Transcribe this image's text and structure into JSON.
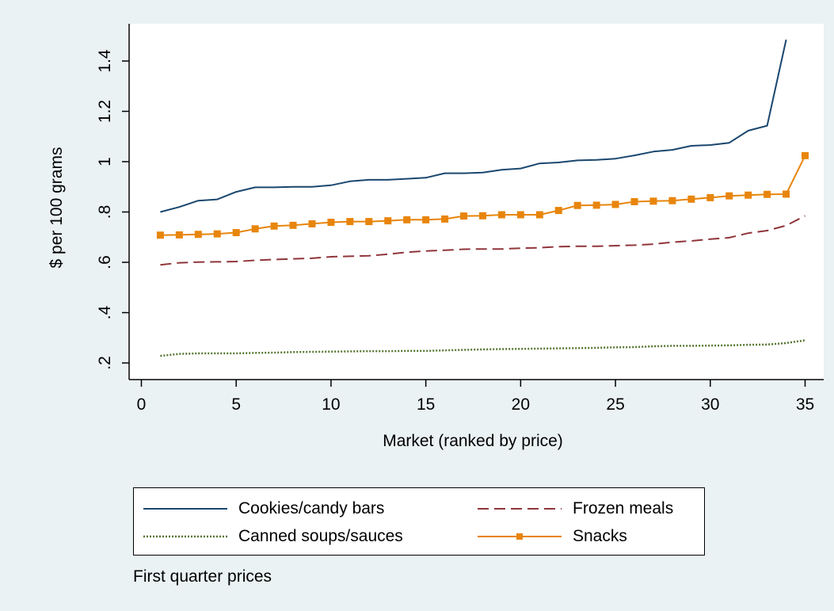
{
  "chart_data": {
    "type": "line",
    "xlabel": "Market (ranked by price)",
    "ylabel": "$ per 100 grams",
    "xlim": [
      0,
      35
    ],
    "ylim": [
      0.2,
      1.5
    ],
    "x_ticks": [
      0,
      5,
      10,
      15,
      20,
      25,
      30,
      35
    ],
    "y_ticks": [
      0.2,
      0.4,
      0.6,
      0.8,
      1.0,
      1.2,
      1.4
    ],
    "y_tick_labels": [
      ".2",
      ".4",
      ".6",
      ".8",
      "1",
      "1.2",
      "1.4"
    ],
    "grid": false,
    "legend_position": "bottom",
    "note": "First quarter prices",
    "series": [
      {
        "name": "Cookies/candy bars",
        "color": "#1a476f",
        "style": "solid",
        "x": [
          1,
          2,
          3,
          4,
          5,
          6,
          7,
          8,
          9,
          10,
          11,
          12,
          13,
          14,
          15,
          16,
          17,
          18,
          19,
          20,
          21,
          22,
          23,
          24,
          25,
          26,
          27,
          28,
          29,
          30,
          31,
          32,
          33,
          34
        ],
        "values": [
          0.8,
          0.82,
          0.845,
          0.85,
          0.88,
          0.898,
          0.898,
          0.9,
          0.9,
          0.906,
          0.922,
          0.928,
          0.928,
          0.932,
          0.936,
          0.954,
          0.954,
          0.957,
          0.968,
          0.973,
          0.993,
          0.997,
          1.005,
          1.007,
          1.012,
          1.025,
          1.04,
          1.047,
          1.063,
          1.066,
          1.075,
          1.123,
          1.143,
          1.485
        ]
      },
      {
        "name": "Frozen meals",
        "color": "#90353b",
        "style": "dashed",
        "x": [
          1,
          2,
          3,
          4,
          5,
          6,
          7,
          8,
          9,
          10,
          11,
          12,
          13,
          14,
          15,
          16,
          17,
          18,
          19,
          20,
          21,
          22,
          23,
          24,
          25,
          26,
          27,
          28,
          29,
          30,
          31,
          32,
          33,
          34,
          35
        ],
        "values": [
          0.59,
          0.598,
          0.601,
          0.602,
          0.603,
          0.608,
          0.611,
          0.614,
          0.616,
          0.622,
          0.624,
          0.626,
          0.632,
          0.64,
          0.645,
          0.648,
          0.652,
          0.653,
          0.653,
          0.656,
          0.658,
          0.662,
          0.664,
          0.664,
          0.666,
          0.668,
          0.672,
          0.68,
          0.685,
          0.692,
          0.698,
          0.716,
          0.726,
          0.746,
          0.785
        ]
      },
      {
        "name": "Canned soups/sauces",
        "color": "#55752f",
        "style": "dotted",
        "x": [
          1,
          2,
          3,
          4,
          5,
          6,
          7,
          8,
          9,
          10,
          11,
          12,
          13,
          14,
          15,
          16,
          17,
          18,
          19,
          20,
          21,
          22,
          23,
          24,
          25,
          26,
          27,
          28,
          29,
          30,
          31,
          32,
          33,
          34,
          35
        ],
        "values": [
          0.228,
          0.236,
          0.238,
          0.238,
          0.238,
          0.24,
          0.241,
          0.243,
          0.244,
          0.245,
          0.246,
          0.247,
          0.247,
          0.248,
          0.248,
          0.25,
          0.252,
          0.254,
          0.255,
          0.256,
          0.257,
          0.258,
          0.259,
          0.26,
          0.262,
          0.263,
          0.266,
          0.268,
          0.268,
          0.269,
          0.27,
          0.272,
          0.273,
          0.279,
          0.29
        ]
      },
      {
        "name": "Snacks",
        "color": "#e8850c",
        "style": "solid-square-markers",
        "x": [
          1,
          2,
          3,
          4,
          5,
          6,
          7,
          8,
          9,
          10,
          11,
          12,
          13,
          14,
          15,
          16,
          17,
          18,
          19,
          20,
          21,
          22,
          23,
          24,
          25,
          26,
          27,
          28,
          29,
          30,
          31,
          32,
          33,
          34,
          35
        ],
        "values": [
          0.708,
          0.709,
          0.711,
          0.713,
          0.718,
          0.733,
          0.744,
          0.747,
          0.753,
          0.759,
          0.762,
          0.762,
          0.765,
          0.769,
          0.769,
          0.772,
          0.784,
          0.785,
          0.789,
          0.789,
          0.789,
          0.806,
          0.826,
          0.827,
          0.83,
          0.841,
          0.843,
          0.845,
          0.851,
          0.857,
          0.864,
          0.867,
          0.87,
          0.871,
          1.024
        ]
      }
    ]
  },
  "legend": {
    "cookies": "Cookies/candy bars",
    "frozen": "Frozen meals",
    "soups": "Canned soups/sauces",
    "snacks": "Snacks"
  }
}
